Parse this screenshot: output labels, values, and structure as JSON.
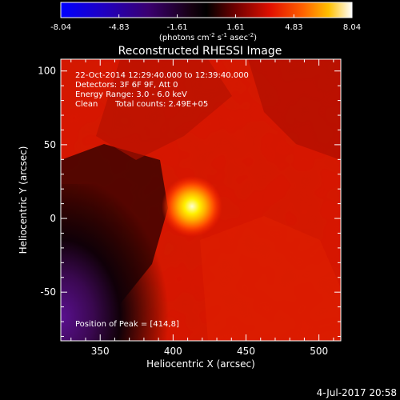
{
  "colorbar": {
    "tick_labels": [
      "-8.04",
      "-4.83",
      "-1.61",
      "1.61",
      "4.83",
      "8.04"
    ],
    "units_prefix": "(photons cm",
    "units_exp1": "-2",
    "units_mid": " s",
    "units_exp2": "-1",
    "units_mid2": " asec",
    "units_exp3": "-2",
    "units_suffix": ")",
    "range": [
      -8.04,
      8.04
    ],
    "colors": [
      "#0000ff",
      "#1a00b0",
      "#300060",
      "#000000",
      "#7a0000",
      "#ff2000",
      "#ff9000",
      "#ffffff"
    ]
  },
  "image": {
    "title": "Reconstructed RHESSI Image",
    "annotation_line1": "22-Oct-2014 12:29:40.000 to 12:39:40.000",
    "annotation_line2": "Detectors: 3F 6F 9F, Att 0",
    "annotation_line3": "Energy Range: 3.0 - 6.0 keV",
    "annotation_line4_a": "Clean",
    "annotation_line4_b": "Total counts: 2.49E+05",
    "peak_label": "Position of Peak = [414,8]",
    "peak_position": [
      414,
      8
    ],
    "xlabel": "Heliocentric X (arcsec)",
    "ylabel": "Heliocentric Y (arcsec)",
    "x_range": [
      323,
      515
    ],
    "y_range": [
      -83,
      108
    ],
    "x_ticks": [
      350,
      400,
      450,
      500
    ],
    "y_ticks": [
      -50,
      0,
      50,
      100
    ]
  },
  "footer": {
    "date": "4-Jul-2017 20:58"
  }
}
